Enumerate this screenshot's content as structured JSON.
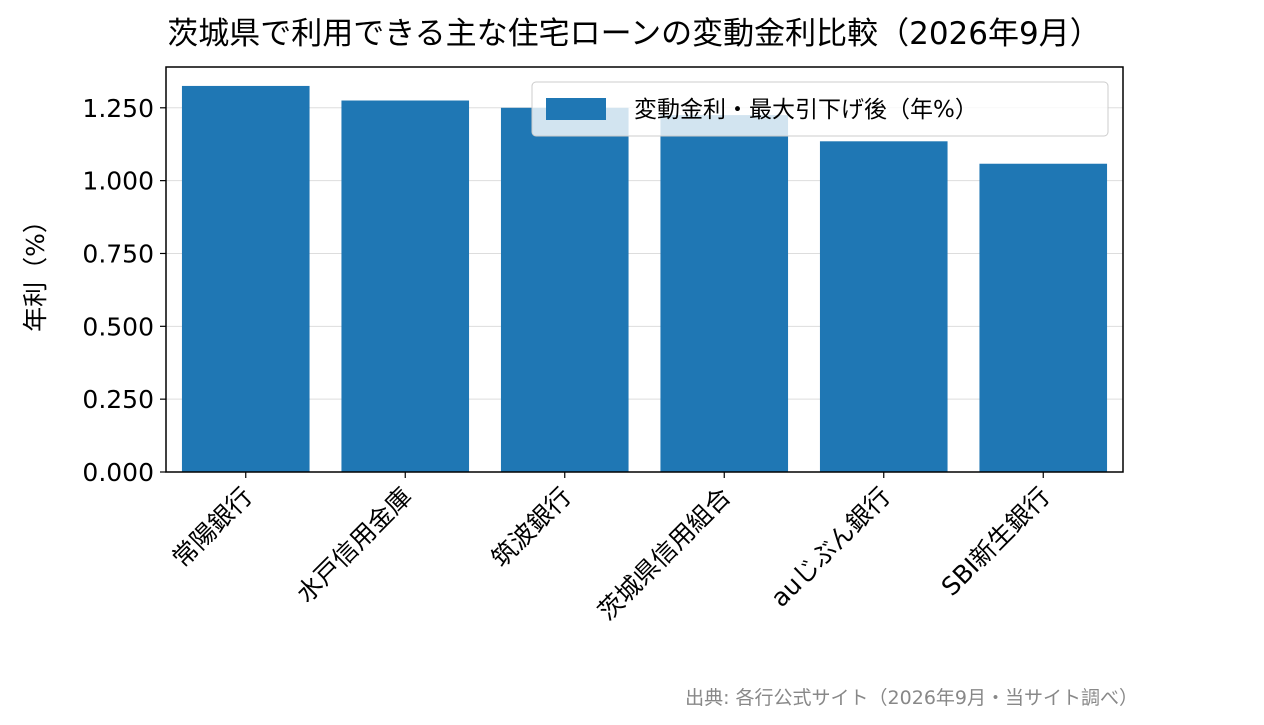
{
  "chart_data": {
    "type": "bar",
    "title": "茨城県で利用できる主な住宅ローンの変動金利比較（2026年9月）",
    "xlabel": "",
    "ylabel": "年利（%）",
    "categories": [
      "常陽銀行",
      "水戸信用金庫",
      "筑波銀行",
      "茨城県信用組合",
      "auじぶん銀行",
      "SBI新生銀行"
    ],
    "series": [
      {
        "name": "変動金利・最大引下げ後（年%）",
        "values": [
          1.325,
          1.275,
          1.25,
          1.225,
          1.135,
          1.058
        ]
      }
    ],
    "ylim": [
      0,
      1.39
    ],
    "yticks": [
      0.0,
      0.25,
      0.5,
      0.75,
      1.0,
      1.25
    ],
    "ytick_labels": [
      "0.000",
      "0.250",
      "0.500",
      "0.750",
      "1.000",
      "1.250"
    ],
    "grid": "y",
    "legend_position": "top-right",
    "bar_color": "#1f77b4",
    "source_note": "出典: 各行公式サイト（2026年9月・当サイト調べ）"
  }
}
